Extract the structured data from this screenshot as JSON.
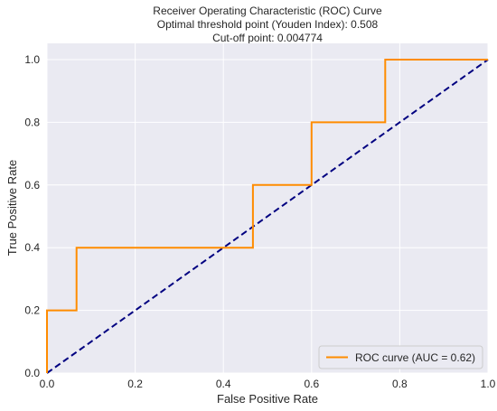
{
  "chart_data": {
    "type": "line",
    "title_lines": [
      "Receiver Operating Characteristic (ROC) Curve",
      "Optimal threshold point (Youden Index): 0.508",
      "Cut-off point: 0.004774"
    ],
    "xlabel": "False Positive Rate",
    "ylabel": "True Positive Rate",
    "xlim": [
      0,
      1
    ],
    "ylim": [
      0,
      1
    ],
    "x_ticks": [
      0.0,
      0.2,
      0.4,
      0.6,
      0.8,
      1.0
    ],
    "y_ticks": [
      0.0,
      0.2,
      0.4,
      0.6,
      0.8,
      1.0
    ],
    "x_tick_labels": [
      "0.0",
      "0.2",
      "0.4",
      "0.6",
      "0.8",
      "1.0"
    ],
    "y_tick_labels": [
      "0.0",
      "0.2",
      "0.4",
      "0.6",
      "0.8",
      "1.0"
    ],
    "grid": true,
    "background": "#eaeaf2",
    "legend_position": "lower right",
    "series": [
      {
        "name": "ROC curve (AUC = 0.62)",
        "color": "#ff8c00",
        "style": "solid",
        "x": [
          0.0,
          0.0,
          0.067,
          0.067,
          0.467,
          0.467,
          0.6,
          0.6,
          0.767,
          0.767,
          1.0
        ],
        "y": [
          0.0,
          0.2,
          0.2,
          0.4,
          0.4,
          0.6,
          0.6,
          0.8,
          0.8,
          1.0,
          1.0
        ]
      },
      {
        "color": "#000080",
        "style": "dashed",
        "x": [
          0,
          1
        ],
        "y": [
          0,
          1
        ]
      }
    ]
  }
}
